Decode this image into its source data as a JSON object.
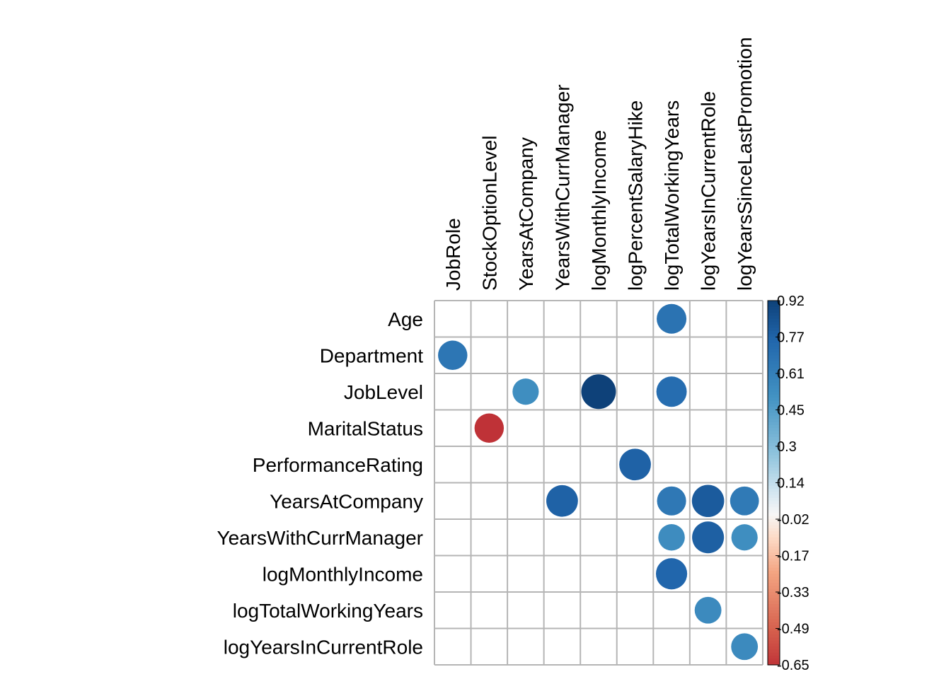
{
  "chart_data": {
    "type": "heatmap",
    "title": "",
    "rows": [
      "Age",
      "Department",
      "JobLevel",
      "MaritalStatus",
      "PerformanceRating",
      "YearsAtCompany",
      "YearsWithCurrManager",
      "logMonthlyIncome",
      "logTotalWorkingYears",
      "logYearsInCurrentRole"
    ],
    "columns": [
      "JobRole",
      "StockOptionLevel",
      "YearsAtCompany",
      "YearsWithCurrManager",
      "logMonthlyIncome",
      "logPercentSalaryHike",
      "logTotalWorkingYears",
      "logYearsInCurrentRole",
      "logYearsSinceLastPromotion"
    ],
    "cells": [
      {
        "row": "Age",
        "col": "logTotalWorkingYears",
        "value": 0.68
      },
      {
        "row": "Department",
        "col": "JobRole",
        "value": 0.66
      },
      {
        "row": "JobLevel",
        "col": "YearsAtCompany",
        "value": 0.53
      },
      {
        "row": "JobLevel",
        "col": "logMonthlyIncome",
        "value": 0.92
      },
      {
        "row": "JobLevel",
        "col": "logTotalWorkingYears",
        "value": 0.71
      },
      {
        "row": "MaritalStatus",
        "col": "StockOptionLevel",
        "value": -0.66
      },
      {
        "row": "PerformanceRating",
        "col": "logPercentSalaryHike",
        "value": 0.77
      },
      {
        "row": "YearsAtCompany",
        "col": "YearsWithCurrManager",
        "value": 0.77
      },
      {
        "row": "YearsAtCompany",
        "col": "logTotalWorkingYears",
        "value": 0.65
      },
      {
        "row": "YearsAtCompany",
        "col": "logYearsInCurrentRole",
        "value": 0.8
      },
      {
        "row": "YearsAtCompany",
        "col": "logYearsSinceLastPromotion",
        "value": 0.64
      },
      {
        "row": "YearsWithCurrManager",
        "col": "logTotalWorkingYears",
        "value": 0.54
      },
      {
        "row": "YearsWithCurrManager",
        "col": "logYearsInCurrentRole",
        "value": 0.78
      },
      {
        "row": "YearsWithCurrManager",
        "col": "logYearsSinceLastPromotion",
        "value": 0.53
      },
      {
        "row": "logMonthlyIncome",
        "col": "logTotalWorkingYears",
        "value": 0.75
      },
      {
        "row": "logTotalWorkingYears",
        "col": "logYearsInCurrentRole",
        "value": 0.55
      },
      {
        "row": "logYearsInCurrentRole",
        "col": "logYearsSinceLastPromotion",
        "value": 0.55
      }
    ],
    "color_scale": {
      "min": -0.65,
      "max": 0.92,
      "ticks": [
        "0.92",
        "0.77",
        "0.61",
        "0.45",
        "0.3",
        "0.14",
        "-0.02",
        "-0.17",
        "-0.33",
        "-0.49",
        "-0.65"
      ],
      "stops": [
        {
          "value": -1.0,
          "color": "#67001f"
        },
        {
          "value": -0.75,
          "color": "#b2182b"
        },
        {
          "value": -0.5,
          "color": "#d6604d"
        },
        {
          "value": -0.25,
          "color": "#f4a582"
        },
        {
          "value": -0.1,
          "color": "#fddbc7"
        },
        {
          "value": 0.0,
          "color": "#f7f7f7"
        },
        {
          "value": 0.1,
          "color": "#d1e5f0"
        },
        {
          "value": 0.25,
          "color": "#92c5de"
        },
        {
          "value": 0.5,
          "color": "#4393c3"
        },
        {
          "value": 0.75,
          "color": "#2166ac"
        },
        {
          "value": 1.0,
          "color": "#053061"
        }
      ]
    },
    "grid": true,
    "legend_position": "right"
  }
}
